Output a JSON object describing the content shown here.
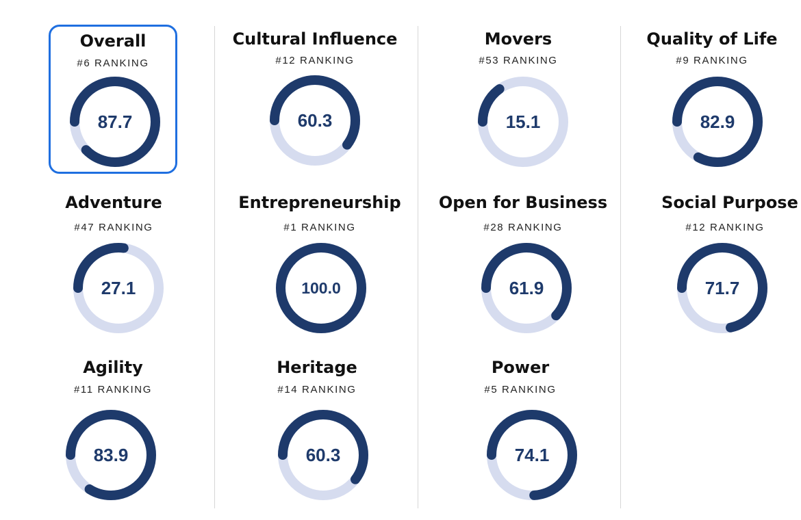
{
  "colors": {
    "ring_fill": "#1e3a6b",
    "ring_track": "#d6dcef",
    "selected_border": "#1f6fe0",
    "divider": "#d6d6d6"
  },
  "cards": [
    {
      "id": "overall",
      "title": "Overall",
      "ranking": "#6 RANKING",
      "score": "87.7",
      "selected": true
    },
    {
      "id": "cultural-influence",
      "title": "Cultural Influence",
      "ranking": "#12 RANKING",
      "score": "60.3",
      "selected": false
    },
    {
      "id": "movers",
      "title": "Movers",
      "ranking": "#53 RANKING",
      "score": "15.1",
      "selected": false
    },
    {
      "id": "quality-of-life",
      "title": "Quality of Life",
      "ranking": "#9 RANKING",
      "score": "82.9",
      "selected": false
    },
    {
      "id": "adventure",
      "title": "Adventure",
      "ranking": "#47 RANKING",
      "score": "27.1",
      "selected": false
    },
    {
      "id": "entrepreneurship",
      "title": "Entrepreneurship",
      "ranking": "#1 RANKING",
      "score": "100.0",
      "selected": false
    },
    {
      "id": "open-for-business",
      "title": "Open for Business",
      "ranking": "#28 RANKING",
      "score": "61.9",
      "selected": false
    },
    {
      "id": "social-purpose",
      "title": "Social Purpose",
      "ranking": "#12 RANKING",
      "score": "71.7",
      "selected": false
    },
    {
      "id": "agility",
      "title": "Agility",
      "ranking": "#11 RANKING",
      "score": "83.9",
      "selected": false
    },
    {
      "id": "heritage",
      "title": "Heritage",
      "ranking": "#14 RANKING",
      "score": "60.3",
      "selected": false
    },
    {
      "id": "power",
      "title": "Power",
      "ranking": "#5 RANKING",
      "score": "74.1",
      "selected": false
    }
  ]
}
